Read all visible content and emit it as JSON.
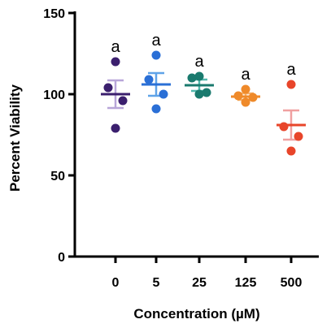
{
  "chart_data": {
    "type": "scatter",
    "title": "",
    "xlabel": "Concentration (µM)",
    "ylabel": "Percent Viability",
    "ylim": [
      0,
      150
    ],
    "yticks": [
      "0",
      "50",
      "100",
      "150"
    ],
    "categories": [
      "0",
      "5",
      "25",
      "125",
      "500"
    ],
    "grid": false,
    "legend": "none",
    "groups": [
      {
        "category": "0",
        "points": [
          120,
          104,
          96,
          79
        ],
        "mean": 100,
        "sem": 8.5,
        "annotation": "a",
        "color": "#3b1f6e",
        "bar_color": "#b8a6d9"
      },
      {
        "category": "5",
        "points": [
          124,
          109,
          100,
          91
        ],
        "mean": 106,
        "sem": 7,
        "annotation": "a",
        "color": "#2a6fd6",
        "bar_color": "#5fa3e8"
      },
      {
        "category": "25",
        "points": [
          111,
          110,
          101,
          100
        ],
        "mean": 105.5,
        "sem": 3.5,
        "annotation": "a",
        "color": "#1a7a6e",
        "bar_color": "#52b8ad"
      },
      {
        "category": "125",
        "points": [
          103,
          99,
          98,
          95
        ],
        "mean": 98.5,
        "sem": 2,
        "annotation": "a",
        "color": "#ef8a2a",
        "bar_color": "#f5b06a"
      },
      {
        "category": "500",
        "points": [
          106,
          80,
          74,
          65
        ],
        "mean": 81,
        "sem": 9,
        "annotation": "a",
        "color": "#e8452a",
        "bar_color": "#f0a0a0"
      }
    ]
  }
}
